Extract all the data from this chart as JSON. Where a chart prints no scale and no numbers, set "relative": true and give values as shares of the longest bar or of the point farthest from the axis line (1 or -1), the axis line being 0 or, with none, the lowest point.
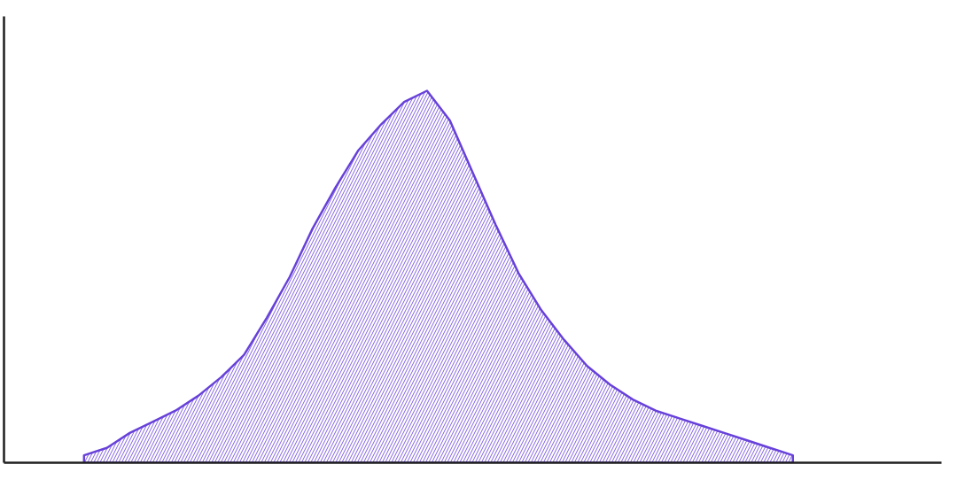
{
  "chart_data": {
    "type": "area",
    "relative": true,
    "categories": [
      null,
      null,
      null,
      null,
      null,
      null,
      null,
      null,
      null,
      null,
      null,
      null,
      null,
      null,
      null,
      null,
      null,
      null,
      null,
      null,
      null,
      null,
      null,
      null,
      null,
      null,
      null,
      null,
      null,
      null,
      null,
      null,
      null,
      null,
      null,
      null,
      null,
      null,
      null,
      null,
      null
    ],
    "series": [
      {
        "color": "#6741d9",
        "values": [
          null,
          null,
          null,
          0.02,
          0.04,
          0.08,
          0.11,
          0.14,
          0.18,
          0.23,
          0.29,
          0.39,
          0.5,
          0.63,
          0.74,
          0.84,
          0.91,
          0.97,
          1.0,
          0.92,
          0.78,
          0.64,
          0.51,
          0.41,
          0.33,
          0.26,
          0.21,
          0.17,
          0.14,
          0.12,
          0.1,
          0.08,
          0.06,
          0.04,
          0.02,
          null,
          null,
          null,
          null,
          null,
          null
        ]
      }
    ]
  }
}
